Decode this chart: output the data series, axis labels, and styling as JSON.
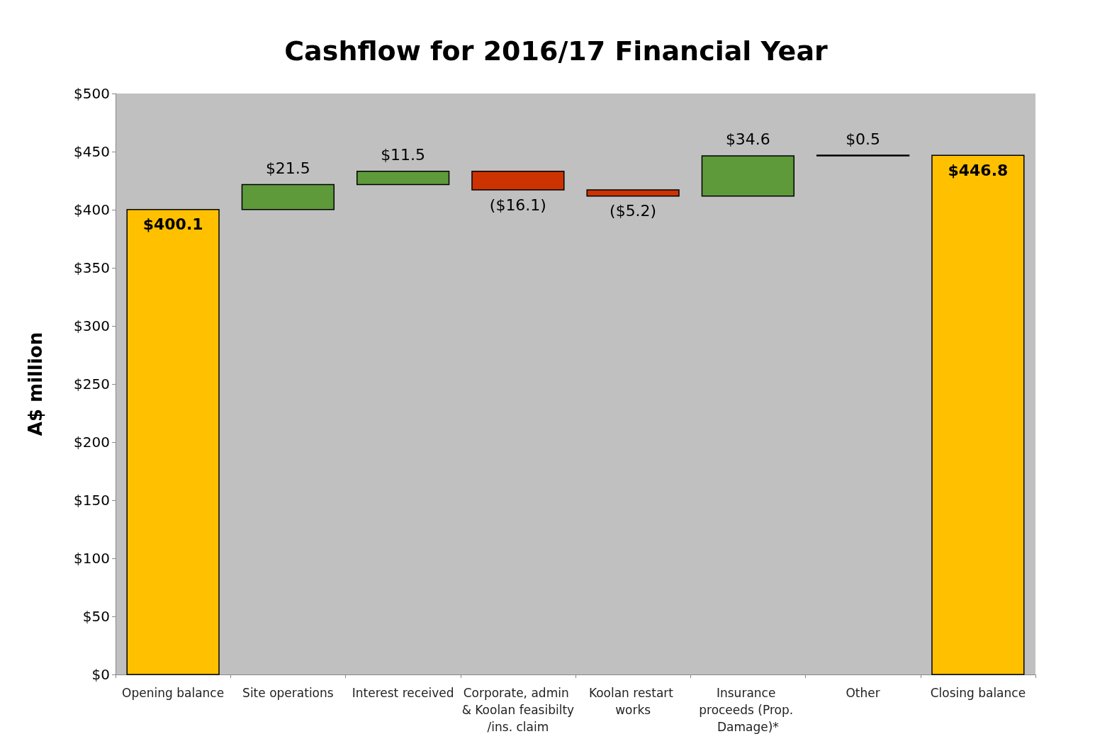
{
  "chart_data": {
    "type": "bar",
    "title": "Cashflow for 2016/17 Financial Year",
    "ylabel": "A$ million",
    "categories": [
      "Opening balance",
      "Site operations",
      "Interest received",
      "Corporate, admin & Koolan feasibilty/ins. claim",
      "Koolan restart works",
      "Insurance proceeds (Prop. Damage)*",
      "Other",
      "Closing balance"
    ],
    "base": [
      0,
      400.1,
      421.6,
      433.1,
      417.0,
      411.8,
      446.4,
      0
    ],
    "values": [
      400.1,
      21.5,
      11.5,
      -16.1,
      -5.2,
      34.6,
      0.5,
      446.8
    ],
    "colors": [
      "#ffc000",
      "#5e9a3a",
      "#5e9a3a",
      "#cc3300",
      "#cc3300",
      "#5e9a3a",
      "#000000",
      "#ffc000"
    ],
    "value_labels": [
      "$400.1",
      "$21.5",
      "$11.5",
      "($16.1)",
      "($5.2)",
      "$34.6",
      "$0.5",
      "$446.8"
    ],
    "ylim": [
      0,
      500
    ],
    "yticks": [
      {
        "value": 0,
        "label": "$0"
      },
      {
        "value": 50,
        "label": "$50"
      },
      {
        "value": 100,
        "label": "$100"
      },
      {
        "value": 150,
        "label": "$150"
      },
      {
        "value": 200,
        "label": "$200"
      },
      {
        "value": 250,
        "label": "$250"
      },
      {
        "value": 300,
        "label": "$300"
      },
      {
        "value": 350,
        "label": "$350"
      },
      {
        "value": 400,
        "label": "$400"
      },
      {
        "value": 450,
        "label": "$450"
      },
      {
        "value": 500,
        "label": "$500"
      }
    ],
    "grid": false
  }
}
